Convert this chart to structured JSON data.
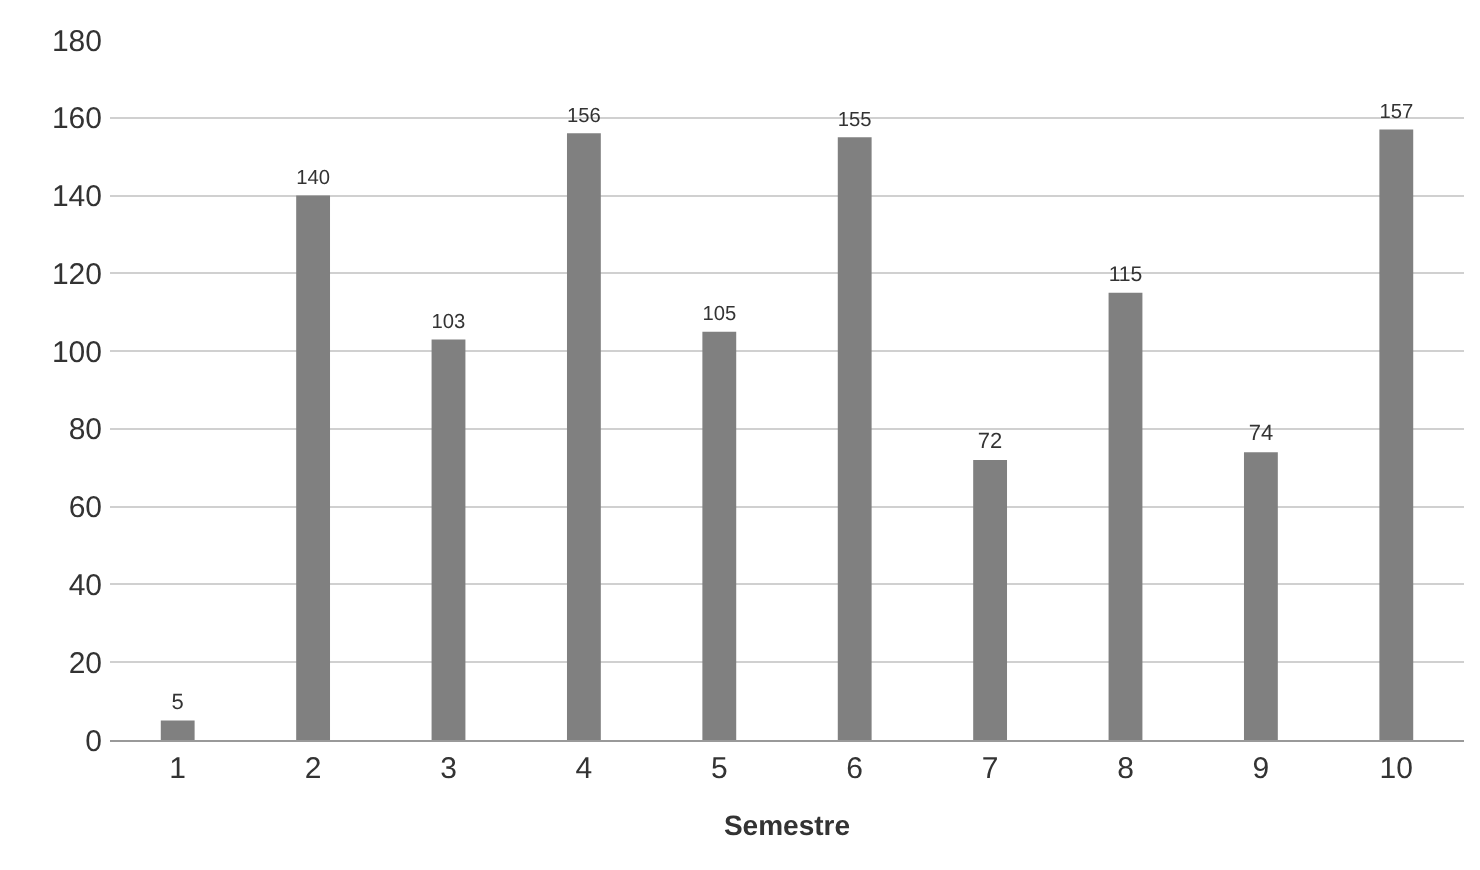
{
  "chart_data": {
    "type": "bar",
    "xlabel": "Semestre",
    "categories": [
      "1",
      "2",
      "3",
      "4",
      "5",
      "6",
      "7",
      "8",
      "9",
      "10"
    ],
    "values": [
      5,
      140,
      103,
      156,
      105,
      155,
      72,
      115,
      74,
      157
    ],
    "color": "#808080",
    "ylim": [
      0,
      180
    ],
    "yticks": [
      0,
      20,
      40,
      60,
      80,
      100,
      120,
      140,
      160,
      180
    ],
    "grid": "y",
    "data_labels": true,
    "legend": false
  }
}
